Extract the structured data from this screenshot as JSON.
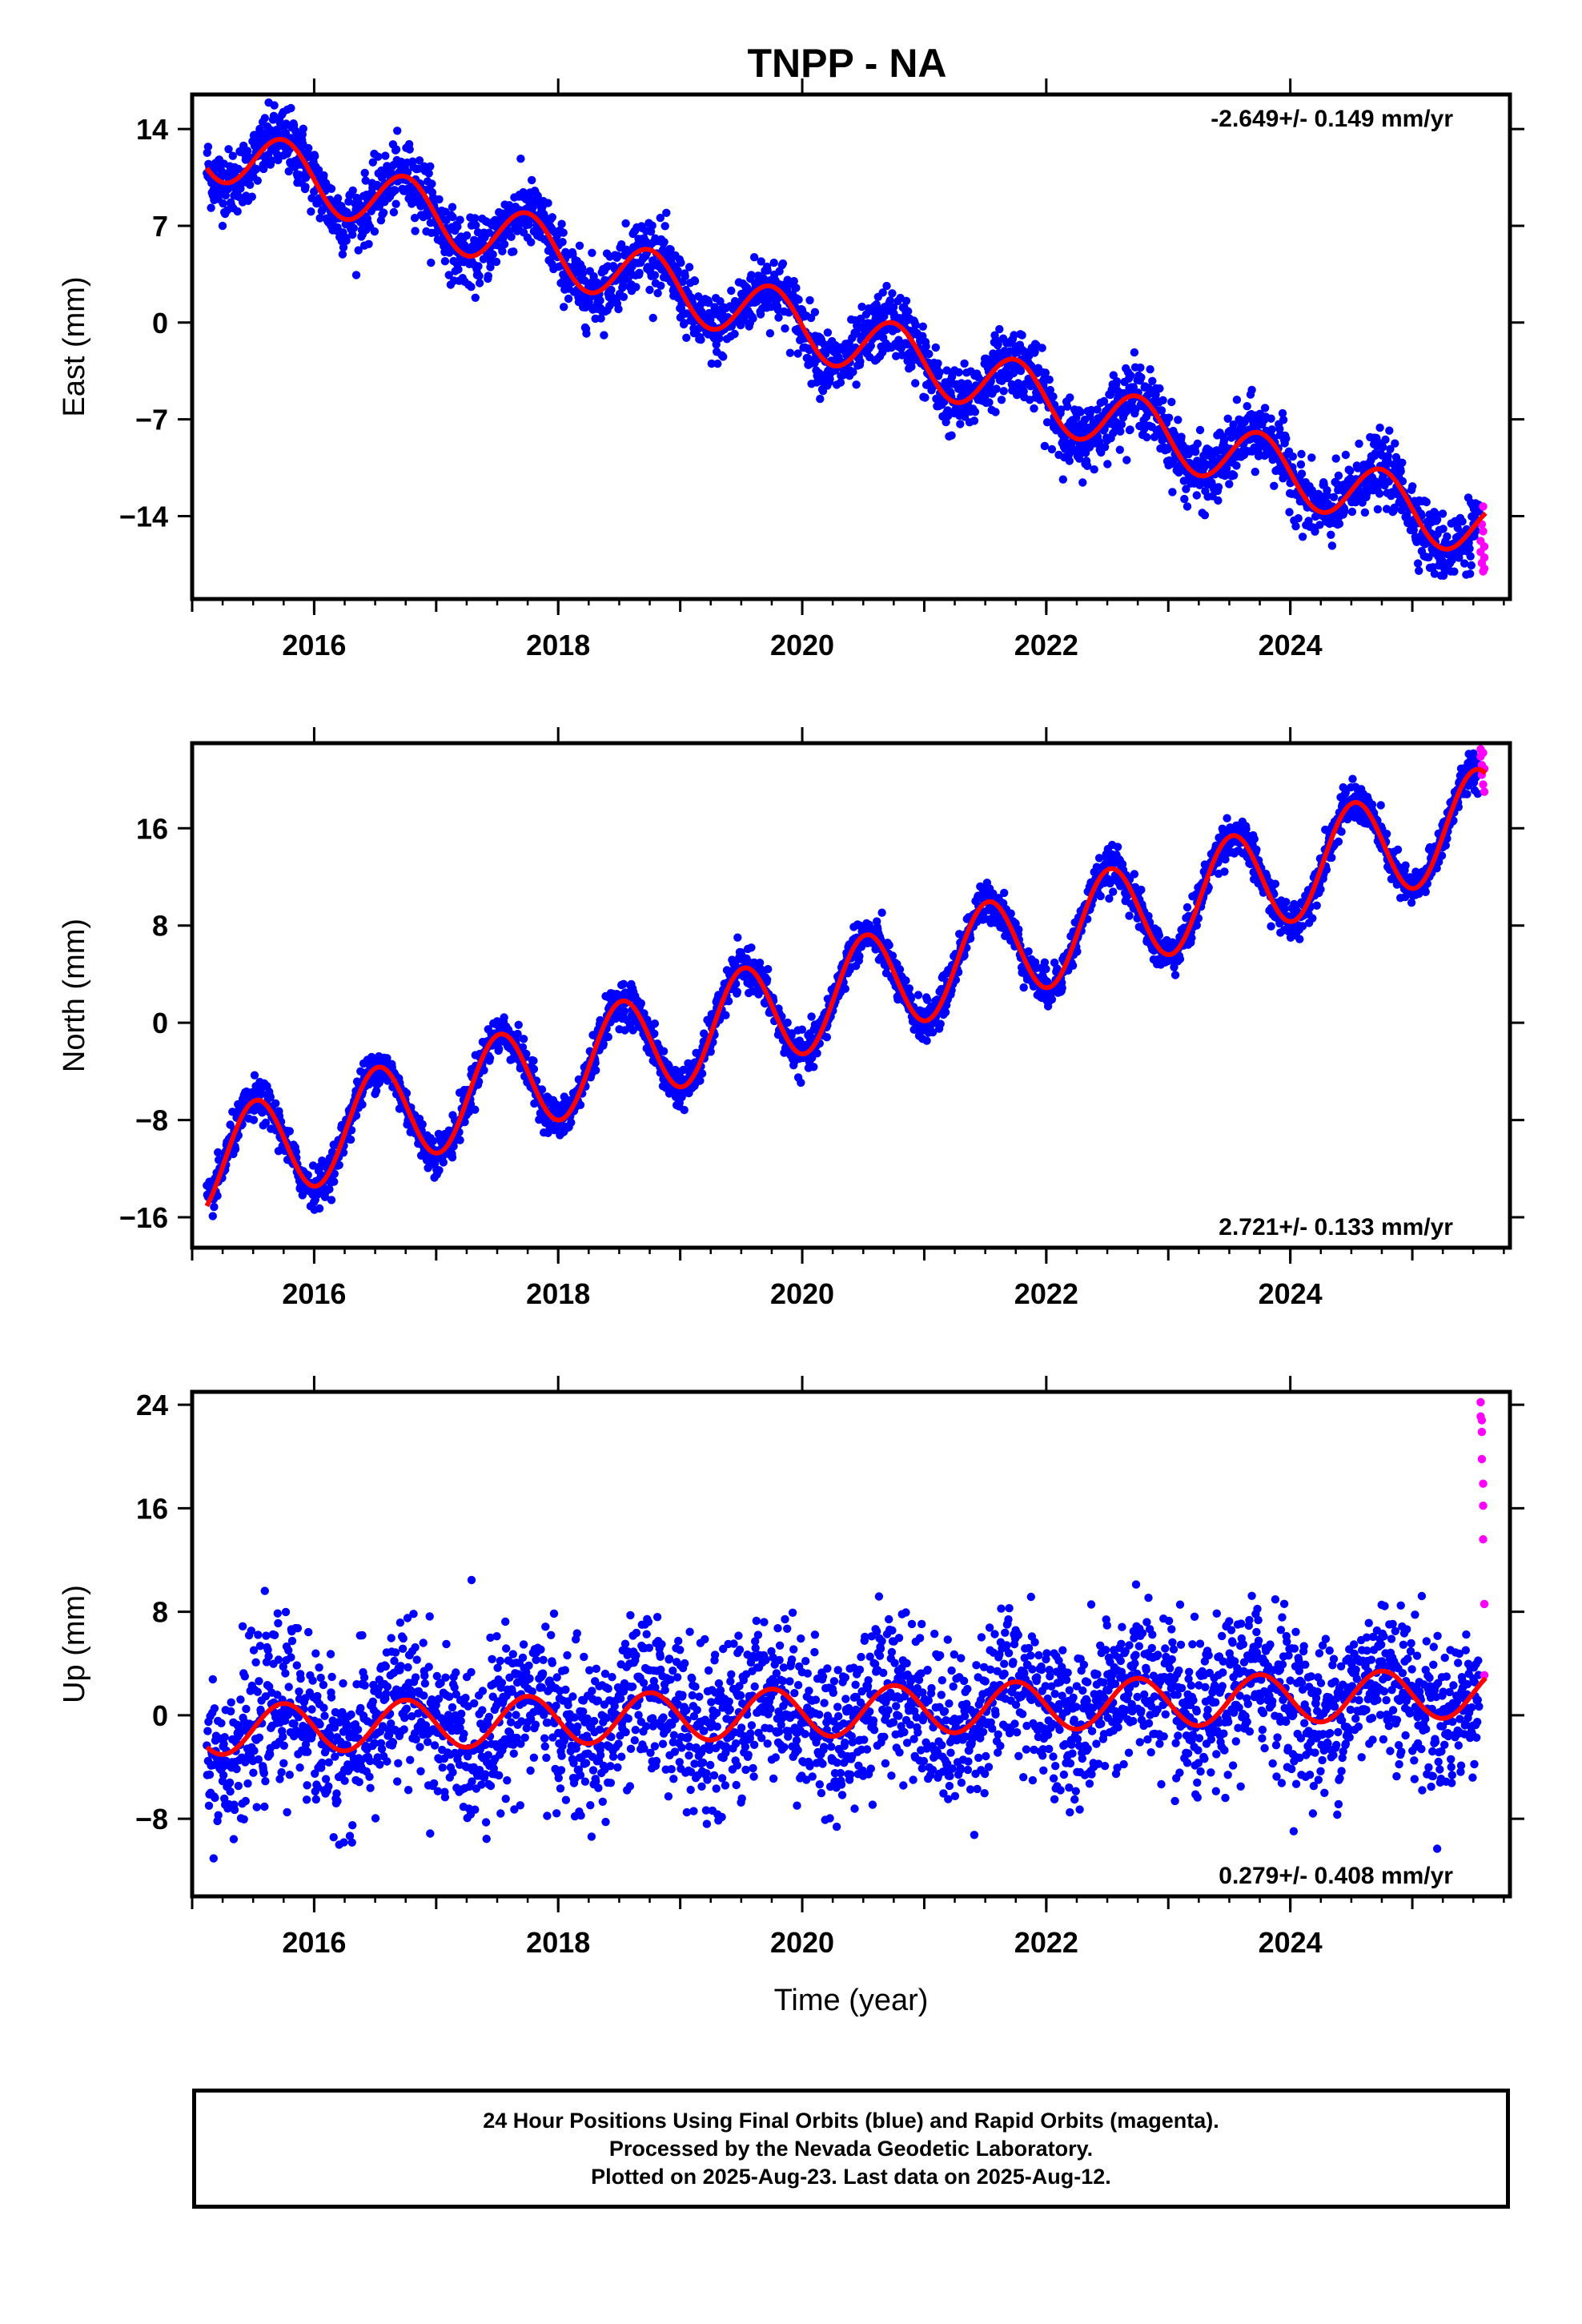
{
  "colors": {
    "final": "#0000ff",
    "rapid": "#ff00ff",
    "fit": "#ff0000",
    "axes": "#000000"
  },
  "chart_data": [
    {
      "type": "scatter",
      "title": "TNPP - NA",
      "ylabel": "East (mm)",
      "xlabel": "",
      "xlim": [
        2015.0,
        2025.8
      ],
      "ylim": [
        -20,
        16.5
      ],
      "yticks": [
        14,
        7,
        0,
        -7,
        -14
      ],
      "xticks": [
        2016,
        2018,
        2020,
        2022,
        2024
      ],
      "velocity_label": "-2.649+/- 0.149 mm/yr",
      "velocity_label_position": "top-right",
      "trend": {
        "rate": -2.649,
        "intercept_at_2015": 13.0,
        "annual_amplitude": 2.2,
        "peak_phase": 0.75,
        "noise": 1.2
      },
      "series": [
        {
          "name": "Final Orbits (blue)",
          "color": "#0000ff"
        },
        {
          "name": "Rapid Orbits (magenta)",
          "color": "#ff00ff",
          "points": [
            [
              2025.56,
              -15.8
            ],
            [
              2025.56,
              -16.6
            ],
            [
              2025.57,
              -17.4
            ],
            [
              2025.57,
              -14.6
            ],
            [
              2025.58,
              -15.1
            ],
            [
              2025.58,
              -13.3
            ],
            [
              2025.58,
              -18.0
            ],
            [
              2025.59,
              -17.0
            ],
            [
              2025.59,
              -16.2
            ],
            [
              2025.59,
              -17.8
            ]
          ]
        }
      ],
      "fit_curve_color": "#ff0000"
    },
    {
      "type": "scatter",
      "title": "",
      "ylabel": "North (mm)",
      "xlabel": "",
      "xlim": [
        2015.0,
        2025.8
      ],
      "ylim": [
        -18.5,
        23
      ],
      "yticks": [
        16,
        8,
        0,
        -8,
        -16
      ],
      "xticks": [
        2016,
        2018,
        2020,
        2022,
        2024
      ],
      "velocity_label": "2.721+/- 0.133 mm/yr",
      "velocity_label_position": "bottom-right",
      "trend": {
        "rate": 2.721,
        "intercept_at_2015": -12.0,
        "annual_amplitude": 4.2,
        "peak_phase": 0.52,
        "noise": 0.8
      },
      "series": [
        {
          "name": "Final Orbits (blue)",
          "color": "#0000ff"
        },
        {
          "name": "Rapid Orbits (magenta)",
          "color": "#ff00ff",
          "points": [
            [
              2025.56,
              21.9
            ],
            [
              2025.56,
              22.5
            ],
            [
              2025.57,
              21.2
            ],
            [
              2025.57,
              20.4
            ],
            [
              2025.58,
              19.6
            ],
            [
              2025.58,
              22.2
            ],
            [
              2025.59,
              20.9
            ],
            [
              2025.59,
              19.0
            ]
          ]
        }
      ],
      "fit_curve_color": "#ff0000"
    },
    {
      "type": "scatter",
      "title": "",
      "ylabel": "Up (mm)",
      "xlabel": "Time (year)",
      "xlim": [
        2015.0,
        2025.8
      ],
      "ylim": [
        -14,
        25
      ],
      "yticks": [
        24,
        16,
        8,
        0,
        -8
      ],
      "xticks": [
        2016,
        2018,
        2020,
        2022,
        2024
      ],
      "velocity_label": "0.279+/- 0.408 mm/yr",
      "velocity_label_position": "bottom-right",
      "trend": {
        "rate": 0.279,
        "intercept_at_2015": -1.2,
        "annual_amplitude": 1.9,
        "peak_phase": 0.75,
        "noise": 3.0
      },
      "series": [
        {
          "name": "Final Orbits (blue)",
          "color": "#0000ff"
        },
        {
          "name": "Rapid Orbits (magenta)",
          "color": "#ff00ff",
          "points": [
            [
              2025.56,
              24.2
            ],
            [
              2025.56,
              23.1
            ],
            [
              2025.57,
              21.9
            ],
            [
              2025.57,
              19.8
            ],
            [
              2025.58,
              16.2
            ],
            [
              2025.58,
              13.6
            ],
            [
              2025.59,
              8.6
            ],
            [
              2025.59,
              3.1
            ],
            [
              2025.58,
              17.9
            ],
            [
              2025.57,
              22.8
            ]
          ]
        }
      ],
      "fit_curve_color": "#ff0000"
    }
  ],
  "footer": {
    "line1": "24 Hour Positions Using Final Orbits (blue) and Rapid Orbits (magenta).",
    "line2": "Processed by the Nevada Geodetic Laboratory.",
    "line3": "Plotted on 2025-Aug-23. Last data on 2025-Aug-12."
  }
}
